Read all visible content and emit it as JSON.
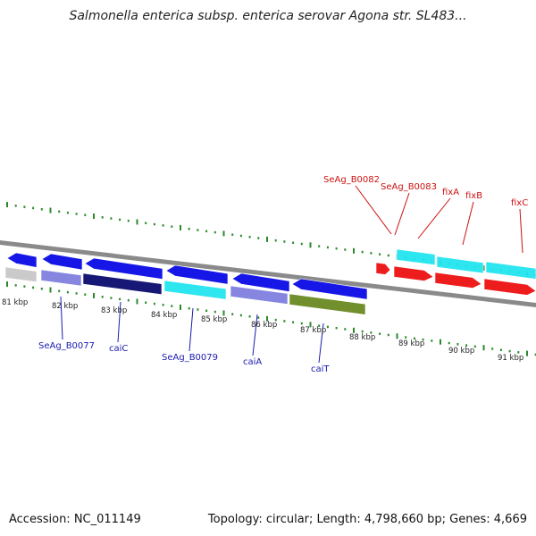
{
  "title": "Salmonella enterica subsp. enterica serovar Agona str. SL483...",
  "footer": {
    "accession": "Accession: NC_011149",
    "summary": "Topology: circular; Length: 4,798,660 bp; Genes: 4,669"
  },
  "colors": {
    "tick": "#2a8a2a",
    "backbone": "#8a8a8a",
    "forward_gene": "#0a0ae6",
    "light_blue_gene": "#8080e0",
    "cyan_gene": "#22e5f0",
    "dark_navy_gene": "#0b0b6e",
    "olive_gene": "#6a8a22",
    "gray_gene": "#c8c8c8",
    "red_gene": "#ee1111",
    "label_blue": "#1a1ab0",
    "label_red": "#cc1111"
  },
  "scale": {
    "unit": "kbp",
    "kbp_ticks": [
      "81 kbp",
      "82 kbp",
      "83 kbp",
      "84 kbp",
      "85 kbp",
      "86 kbp",
      "87 kbp",
      "88 kbp",
      "89 kbp",
      "90 kbp",
      "91 kbp"
    ]
  },
  "gene_labels": {
    "bottom": [
      "SeAg_B0077",
      "caiC",
      "SeAg_B0079",
      "caiA",
      "caiT"
    ],
    "top": [
      "SeAg_B0082",
      "SeAg_B0083",
      "fixA",
      "fixB",
      "fixC"
    ]
  }
}
